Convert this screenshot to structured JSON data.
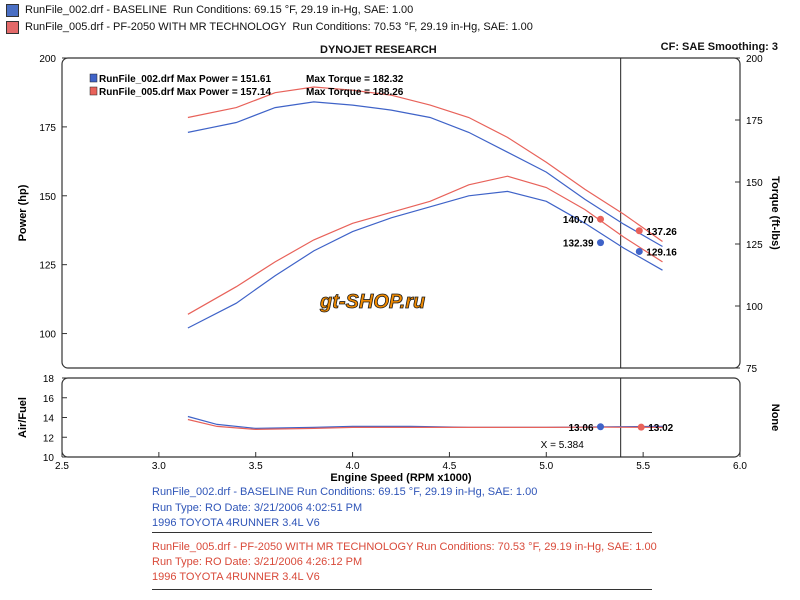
{
  "header": {
    "runs": [
      {
        "file": "RunFile_002.drf - BASELINE",
        "conditions": "Run Conditions: 69.15 °F, 29.19 in-Hg, SAE: 1.00",
        "color": "#4a6fc4"
      },
      {
        "file": "RunFile_005.drf - PF-2050 WITH MR TECHNOLOGY",
        "conditions": "Run Conditions: 70.53 °F, 29.19 in-Hg, SAE: 1.00",
        "color": "#e36a6a"
      }
    ],
    "title": "DYNOJET RESEARCH",
    "cf_smoothing": "CF: SAE  Smoothing: 3"
  },
  "logo_text": "gt-SHOP.ru",
  "legend": [
    {
      "name": "RunFile_002.drf Max Power = 151.61",
      "torque": "Max Torque = 182.32",
      "color": "#3f63c8"
    },
    {
      "name": "RunFile_005.drf Max Power = 157.14",
      "torque": "Max Torque = 188.26",
      "color": "#e8625a"
    }
  ],
  "chart_data": [
    {
      "type": "line",
      "title": "DYNOJET RESEARCH",
      "xlabel": "Engine Speed (RPM x1000)",
      "ylabel": "Power (hp)",
      "y2label": "Torque (ft-lbs)",
      "xlim": [
        2.5,
        6.0
      ],
      "ylim": [
        87.5,
        200
      ],
      "y2lim": [
        75,
        200
      ],
      "y_ticks": [
        "200",
        "175",
        "150",
        "125",
        "100"
      ],
      "y2_ticks": [
        "200",
        "175",
        "150",
        "125",
        "100",
        "75"
      ],
      "cursor_x": 5.384,
      "series": [
        {
          "name": "RunFile_002.drf",
          "kind": "power",
          "color": "#3f63c8",
          "x": [
            3.15,
            3.4,
            3.6,
            3.8,
            4.0,
            4.2,
            4.4,
            4.6,
            4.8,
            5.0,
            5.2,
            5.4,
            5.6
          ],
          "y": [
            102,
            111,
            121,
            130,
            137,
            142,
            146,
            150,
            151.6,
            148,
            140,
            131,
            123
          ]
        },
        {
          "name": "RunFile_005.drf",
          "kind": "power",
          "color": "#e8625a",
          "x": [
            3.15,
            3.4,
            3.6,
            3.8,
            4.0,
            4.2,
            4.4,
            4.6,
            4.8,
            5.0,
            5.2,
            5.4,
            5.6
          ],
          "y": [
            107,
            117,
            126,
            134,
            140,
            144,
            148,
            154,
            157.1,
            153,
            145,
            135,
            126
          ]
        },
        {
          "name": "RunFile_002.drf",
          "kind": "torque",
          "color": "#3f63c8",
          "x": [
            3.15,
            3.4,
            3.6,
            3.8,
            4.0,
            4.2,
            4.4,
            4.6,
            4.8,
            5.0,
            5.2,
            5.4,
            5.6
          ],
          "y": [
            170,
            174,
            180,
            182.3,
            181,
            179,
            176,
            170,
            162,
            154,
            143,
            133,
            124
          ]
        },
        {
          "name": "RunFile_005.drf",
          "kind": "torque",
          "color": "#e8625a",
          "x": [
            3.15,
            3.4,
            3.6,
            3.8,
            4.0,
            4.2,
            4.4,
            4.6,
            4.8,
            5.0,
            5.2,
            5.4,
            5.6
          ],
          "y": [
            176,
            180,
            186,
            188.3,
            187,
            185,
            181,
            176,
            168,
            158,
            147,
            137,
            126
          ]
        }
      ],
      "cursor_labels": [
        {
          "text": "140.70",
          "x": 5.28,
          "y": 141.5,
          "color": "#e8625a",
          "side": "left"
        },
        {
          "text": "132.39",
          "x": 5.28,
          "y": 133.0,
          "color": "#3f63c8",
          "side": "left"
        },
        {
          "text": "137.26",
          "x": 5.48,
          "y": 137.3,
          "color": "#e8625a",
          "side": "right"
        },
        {
          "text": "129.16",
          "x": 5.48,
          "y": 129.8,
          "color": "#3f63c8",
          "side": "right"
        }
      ]
    },
    {
      "type": "line",
      "xlabel": "Engine Speed (RPM x1000)",
      "ylabel": "Air/Fuel",
      "y2label": "None",
      "xlim": [
        2.5,
        6.0
      ],
      "ylim": [
        10,
        18
      ],
      "x_ticks": [
        "2.5",
        "3.0",
        "3.5",
        "4.0",
        "4.5",
        "5.0",
        "5.5",
        "6.0"
      ],
      "y_ticks": [
        "18",
        "16",
        "14",
        "12",
        "10"
      ],
      "x_readout": "X = 5.384",
      "series": [
        {
          "name": "RunFile_002.drf",
          "color": "#3f63c8",
          "x": [
            3.15,
            3.3,
            3.5,
            3.8,
            4.0,
            4.3,
            4.6,
            5.0,
            5.3,
            5.6
          ],
          "y": [
            14.1,
            13.3,
            12.9,
            13.0,
            13.1,
            13.1,
            13.0,
            13.0,
            13.06,
            13.1
          ]
        },
        {
          "name": "RunFile_005.drf",
          "color": "#e8625a",
          "x": [
            3.15,
            3.3,
            3.5,
            3.8,
            4.0,
            4.3,
            4.6,
            5.0,
            5.3,
            5.6
          ],
          "y": [
            13.8,
            13.1,
            12.8,
            12.9,
            13.0,
            13.0,
            13.0,
            13.0,
            13.02,
            13.0
          ]
        }
      ],
      "cursor_labels": [
        {
          "text": "13.06",
          "x": 5.28,
          "y": 13.06,
          "color": "#3f63c8",
          "side": "left"
        },
        {
          "text": "13.02",
          "x": 5.49,
          "y": 13.02,
          "color": "#e8625a",
          "side": "right"
        }
      ]
    }
  ],
  "footer": {
    "run1": {
      "line1": "RunFile_002.drf - BASELINE   Run Conditions: 69.15 °F, 29.19 in-Hg, SAE: 1.00",
      "line2": "Run Type: RO  Date: 3/21/2006 4:02:51 PM",
      "line3": "1996 TOYOTA 4RUNNER 3.4L V6"
    },
    "run2": {
      "line1": "RunFile_005.drf - PF-2050 WITH MR TECHNOLOGY   Run Conditions: 70.53 °F, 29.19 in-Hg, SAE: 1.00",
      "line2": "Run Type: RO  Date: 3/21/2006 4:26:12 PM",
      "line3": "1996 TOYOTA 4RUNNER 3.4L V6"
    }
  }
}
